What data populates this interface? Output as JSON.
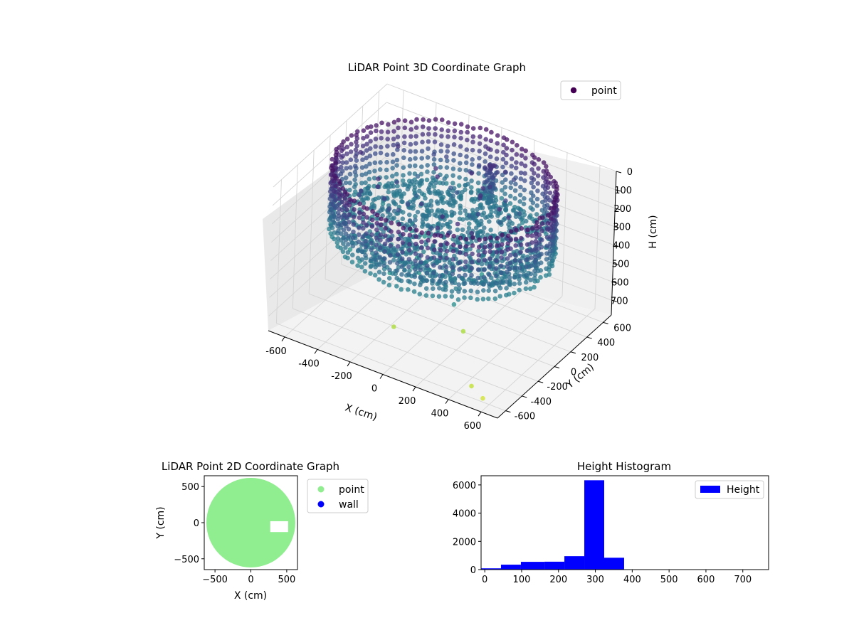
{
  "chart_data": [
    {
      "type": "scatter",
      "projection": "3d",
      "title": "LiDAR Point 3D Coordinate Graph",
      "xlabel": "X (cm)",
      "ylabel": "Y (cm)",
      "zlabel": "H (cm)",
      "xlim": [
        -700,
        700
      ],
      "ylim": [
        -700,
        700
      ],
      "zlim": [
        0,
        780
      ],
      "z_inverted": true,
      "xticks": [
        "-600",
        "-400",
        "-200",
        "0",
        "200",
        "400",
        "600"
      ],
      "yticks": [
        "-600",
        "-400",
        "-200",
        "0",
        "200",
        "400",
        "600"
      ],
      "zticks": [
        "0",
        "100",
        "200",
        "300",
        "400",
        "500",
        "600",
        "700"
      ],
      "legend": [
        {
          "label": "point",
          "color": "#440154"
        }
      ],
      "legend_position": "upper-right",
      "colormap": "viridis",
      "series": [
        {
          "name": "point",
          "description_values": {
            "ring_radius": 610,
            "ring_height_min": 0,
            "ring_height_max": 330,
            "floor_height": 300,
            "column": {
              "x": 60,
              "y": 450,
              "h_min": 80,
              "h_max": 300
            }
          },
          "outliers": [
            {
              "x": 0,
              "y": 540,
              "h": 50
            },
            {
              "x": -120,
              "y": -330,
              "h": 710
            },
            {
              "x": 200,
              "y": -120,
              "h": 710
            },
            {
              "x": 470,
              "y": -560,
              "h": 740
            },
            {
              "x": 560,
              "y": -600,
              "h": 760
            }
          ]
        }
      ],
      "grid": true
    },
    {
      "type": "scatter",
      "title": "LiDAR Point 2D Coordinate Graph",
      "xlabel": "X (cm)",
      "ylabel": "Y (cm)",
      "xlim": [
        -650,
        650
      ],
      "ylim": [
        -650,
        650
      ],
      "xticks": [
        -500,
        0,
        500
      ],
      "yticks": [
        -500,
        0,
        500
      ],
      "legend": [
        {
          "label": "point",
          "color": "#90ee90"
        },
        {
          "label": "wall",
          "color": "#0000ff"
        }
      ],
      "legend_position": "outside-right",
      "series": [
        {
          "name": "point",
          "shape": "disc",
          "center": [
            0,
            0
          ],
          "radius": 620,
          "gap": {
            "x_min": 270,
            "x_max": 520,
            "y_min": -130,
            "y_max": 20
          }
        },
        {
          "name": "wall",
          "values": []
        }
      ]
    },
    {
      "type": "bar",
      "subtype": "histogram",
      "title": "Height Histogram",
      "xlim": [
        -10,
        770
      ],
      "ylim": [
        0,
        6650
      ],
      "xticks": [
        0,
        100,
        200,
        300,
        400,
        500,
        600,
        700
      ],
      "yticks": [
        0,
        2000,
        4000,
        6000
      ],
      "legend": [
        {
          "label": "Height",
          "color": "#0000ff"
        }
      ],
      "legend_position": "upper-right",
      "series": [
        {
          "name": "Height",
          "color": "#0000ff",
          "bin_edges": [
            -10,
            44,
            98,
            162,
            216,
            270,
            324,
            378,
            432,
            486,
            540,
            594,
            648,
            702,
            756
          ],
          "values": [
            90,
            350,
            550,
            560,
            950,
            6330,
            840,
            20,
            15,
            15,
            10,
            10,
            10,
            10
          ]
        }
      ]
    }
  ]
}
